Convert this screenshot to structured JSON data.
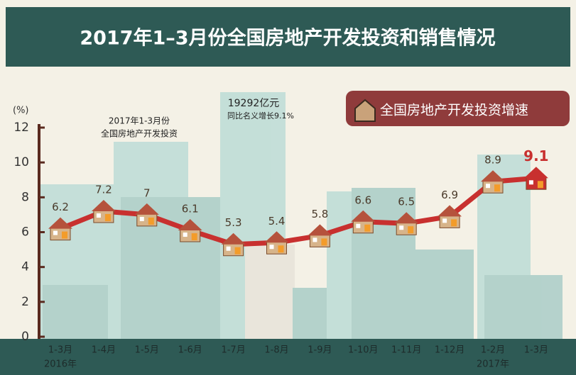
{
  "chart_data": {
    "type": "line",
    "title": "2017年1–3月份全国房地产开发投资和销售情况",
    "y_unit": "(%)",
    "categories": [
      "1-3月",
      "1-4月",
      "1-5月",
      "1-6月",
      "1-7月",
      "1-8月",
      "1-9月",
      "1-10月",
      "1-11月",
      "1-12月",
      "1-2月",
      "1-3月"
    ],
    "year_first": "2016年",
    "year_last": "2017年",
    "series": [
      {
        "name": "全国房地产开发投资增速",
        "color": "#c8302f",
        "values": [
          6.2,
          7.2,
          7.0,
          6.1,
          5.3,
          5.4,
          5.8,
          6.6,
          6.5,
          6.9,
          8.9,
          9.1
        ]
      }
    ],
    "ylim": [
      0,
      12
    ],
    "yticks": [
      0,
      2,
      4,
      6,
      8,
      10,
      12
    ],
    "annotation_1": [
      "2017年1-3月份",
      "全国房地产开发投资"
    ],
    "annotation_2": [
      "19292亿元",
      "同比名义增长9.1%"
    ],
    "highlight_color": "#c8302f"
  }
}
